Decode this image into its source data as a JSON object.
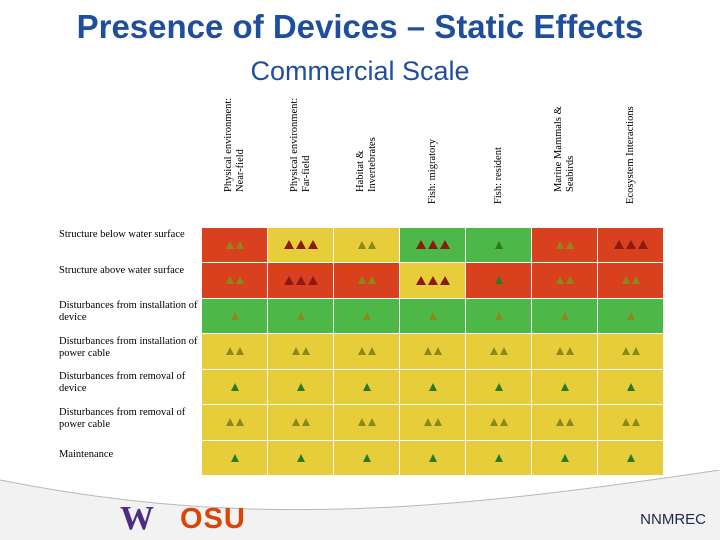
{
  "title": "Presence of Devices – Static Effects",
  "subtitle": "Commercial Scale",
  "colors": {
    "red": "#d9401e",
    "yellow": "#e8cd3a",
    "green": "#4db848",
    "tri_dark_red": "#8b1a12",
    "tri_green": "#2a7a20",
    "tri_olive": "#8a8a1a"
  },
  "columns": [
    "Physical environment: Near-field",
    "Physical environment: Far-field",
    "Habitat & Invertebrates",
    "Fish: migratory",
    "Fish: resident",
    "Marine Mammals & Seabirds",
    "Ecosystem Interactions"
  ],
  "column_lines": [
    [
      "Physical environment:",
      "Near-field"
    ],
    [
      "Physical environment:",
      "Far-field"
    ],
    [
      "Habitat &",
      "Invertebrates"
    ],
    [
      "Fish: migratory"
    ],
    [
      "Fish: resident"
    ],
    [
      "Marine Mammals &",
      "Seabirds"
    ],
    [
      "Ecosystem Interactions"
    ]
  ],
  "rows": [
    {
      "label": "Structure below water surface",
      "cells": [
        {
          "color": "red",
          "tri": 2,
          "tc": "olive"
        },
        {
          "color": "yellow",
          "tri": 3,
          "tc": "darkred"
        },
        {
          "color": "yellow",
          "tri": 2,
          "tc": "olive"
        },
        {
          "color": "green",
          "tri": 3,
          "tc": "darkred"
        },
        {
          "color": "green",
          "tri": 1,
          "tc": "green"
        },
        {
          "color": "red",
          "tri": 2,
          "tc": "olive"
        },
        {
          "color": "red",
          "tri": 3,
          "tc": "darkred"
        }
      ]
    },
    {
      "label": "Structure above water surface",
      "cells": [
        {
          "color": "red",
          "tri": 2,
          "tc": "olive"
        },
        {
          "color": "red",
          "tri": 3,
          "tc": "darkred"
        },
        {
          "color": "red",
          "tri": 2,
          "tc": "olive"
        },
        {
          "color": "yellow",
          "tri": 3,
          "tc": "darkred"
        },
        {
          "color": "red",
          "tri": 1,
          "tc": "green"
        },
        {
          "color": "red",
          "tri": 2,
          "tc": "olive"
        },
        {
          "color": "red",
          "tri": 2,
          "tc": "olive"
        }
      ]
    },
    {
      "label": "Disturbances from installation of device",
      "cells": [
        {
          "color": "green",
          "tri": 1,
          "tc": "olive"
        },
        {
          "color": "green",
          "tri": 1,
          "tc": "olive"
        },
        {
          "color": "green",
          "tri": 1,
          "tc": "olive"
        },
        {
          "color": "green",
          "tri": 1,
          "tc": "olive"
        },
        {
          "color": "green",
          "tri": 1,
          "tc": "olive"
        },
        {
          "color": "green",
          "tri": 1,
          "tc": "olive"
        },
        {
          "color": "green",
          "tri": 1,
          "tc": "olive"
        }
      ]
    },
    {
      "label": "Disturbances from installation of power cable",
      "cells": [
        {
          "color": "yellow",
          "tri": 2,
          "tc": "olive"
        },
        {
          "color": "yellow",
          "tri": 2,
          "tc": "olive"
        },
        {
          "color": "yellow",
          "tri": 2,
          "tc": "olive"
        },
        {
          "color": "yellow",
          "tri": 2,
          "tc": "olive"
        },
        {
          "color": "yellow",
          "tri": 2,
          "tc": "olive"
        },
        {
          "color": "yellow",
          "tri": 2,
          "tc": "olive"
        },
        {
          "color": "yellow",
          "tri": 2,
          "tc": "olive"
        }
      ]
    },
    {
      "label": "Disturbances from removal of device",
      "cells": [
        {
          "color": "yellow",
          "tri": 1,
          "tc": "green"
        },
        {
          "color": "yellow",
          "tri": 1,
          "tc": "green"
        },
        {
          "color": "yellow",
          "tri": 1,
          "tc": "green"
        },
        {
          "color": "yellow",
          "tri": 1,
          "tc": "green"
        },
        {
          "color": "yellow",
          "tri": 1,
          "tc": "green"
        },
        {
          "color": "yellow",
          "tri": 1,
          "tc": "green"
        },
        {
          "color": "yellow",
          "tri": 1,
          "tc": "green"
        }
      ]
    },
    {
      "label": "Disturbances from removal of power cable",
      "cells": [
        {
          "color": "yellow",
          "tri": 2,
          "tc": "olive"
        },
        {
          "color": "yellow",
          "tri": 2,
          "tc": "olive"
        },
        {
          "color": "yellow",
          "tri": 2,
          "tc": "olive"
        },
        {
          "color": "yellow",
          "tri": 2,
          "tc": "olive"
        },
        {
          "color": "yellow",
          "tri": 2,
          "tc": "olive"
        },
        {
          "color": "yellow",
          "tri": 2,
          "tc": "olive"
        },
        {
          "color": "yellow",
          "tri": 2,
          "tc": "olive"
        }
      ]
    },
    {
      "label": "Maintenance",
      "cells": [
        {
          "color": "yellow",
          "tri": 1,
          "tc": "green"
        },
        {
          "color": "yellow",
          "tri": 1,
          "tc": "green"
        },
        {
          "color": "yellow",
          "tri": 1,
          "tc": "green"
        },
        {
          "color": "yellow",
          "tri": 1,
          "tc": "green"
        },
        {
          "color": "yellow",
          "tri": 1,
          "tc": "green"
        },
        {
          "color": "yellow",
          "tri": 1,
          "tc": "green"
        },
        {
          "color": "yellow",
          "tri": 1,
          "tc": "green"
        }
      ]
    }
  ],
  "logos": {
    "uw": "W",
    "osu": "OSU"
  },
  "footer_text": "NNMREC"
}
